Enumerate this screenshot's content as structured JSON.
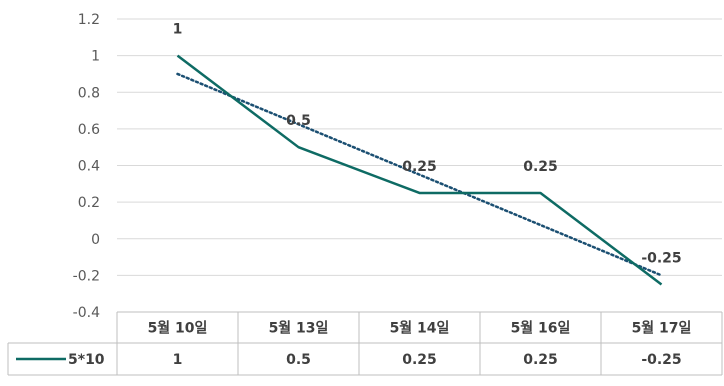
{
  "chart_data": {
    "type": "line",
    "categories": [
      "5월 10일",
      "5월 13일",
      "5월 14일",
      "5월 16일",
      "5월 17일"
    ],
    "series": [
      {
        "name": "5*10",
        "values": [
          1,
          0.5,
          0.25,
          0.25,
          -0.25
        ],
        "color": "#0e6b64"
      }
    ],
    "trendline": {
      "type": "linear",
      "style": "dotted",
      "color": "#1b4f72",
      "start": 0.9,
      "end": -0.2
    },
    "data_labels": [
      "1",
      "0.5",
      "0.25",
      "0.25",
      "-0.25"
    ],
    "y_ticks": [
      "1.2",
      "1",
      "0.8",
      "0.6",
      "0.4",
      "0.2",
      "0",
      "-0.2",
      "-0.4"
    ],
    "ylim": [
      -0.4,
      1.2
    ],
    "grid": true,
    "data_table": {
      "legend_label": "5*10",
      "values": [
        "1",
        "0.5",
        "0.25",
        "0.25",
        "-0.25"
      ]
    }
  }
}
